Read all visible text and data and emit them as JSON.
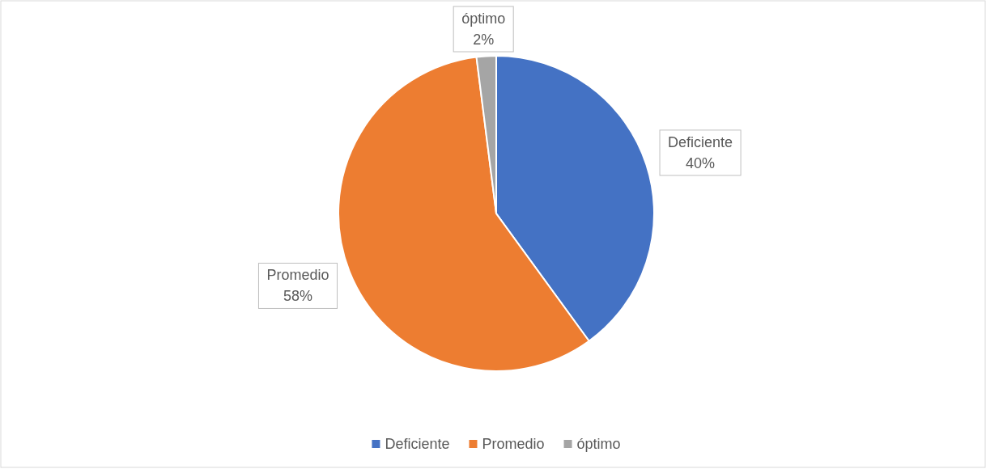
{
  "chart_data": {
    "type": "pie",
    "categories": [
      "Deficiente",
      "Promedio",
      "óptimo"
    ],
    "values": [
      40,
      58,
      2
    ],
    "colors": [
      "#4472c4",
      "#ed7d31",
      "#a5a5a5"
    ],
    "value_labels": [
      "40%",
      "58%",
      "2%"
    ],
    "legend": "bottom"
  }
}
